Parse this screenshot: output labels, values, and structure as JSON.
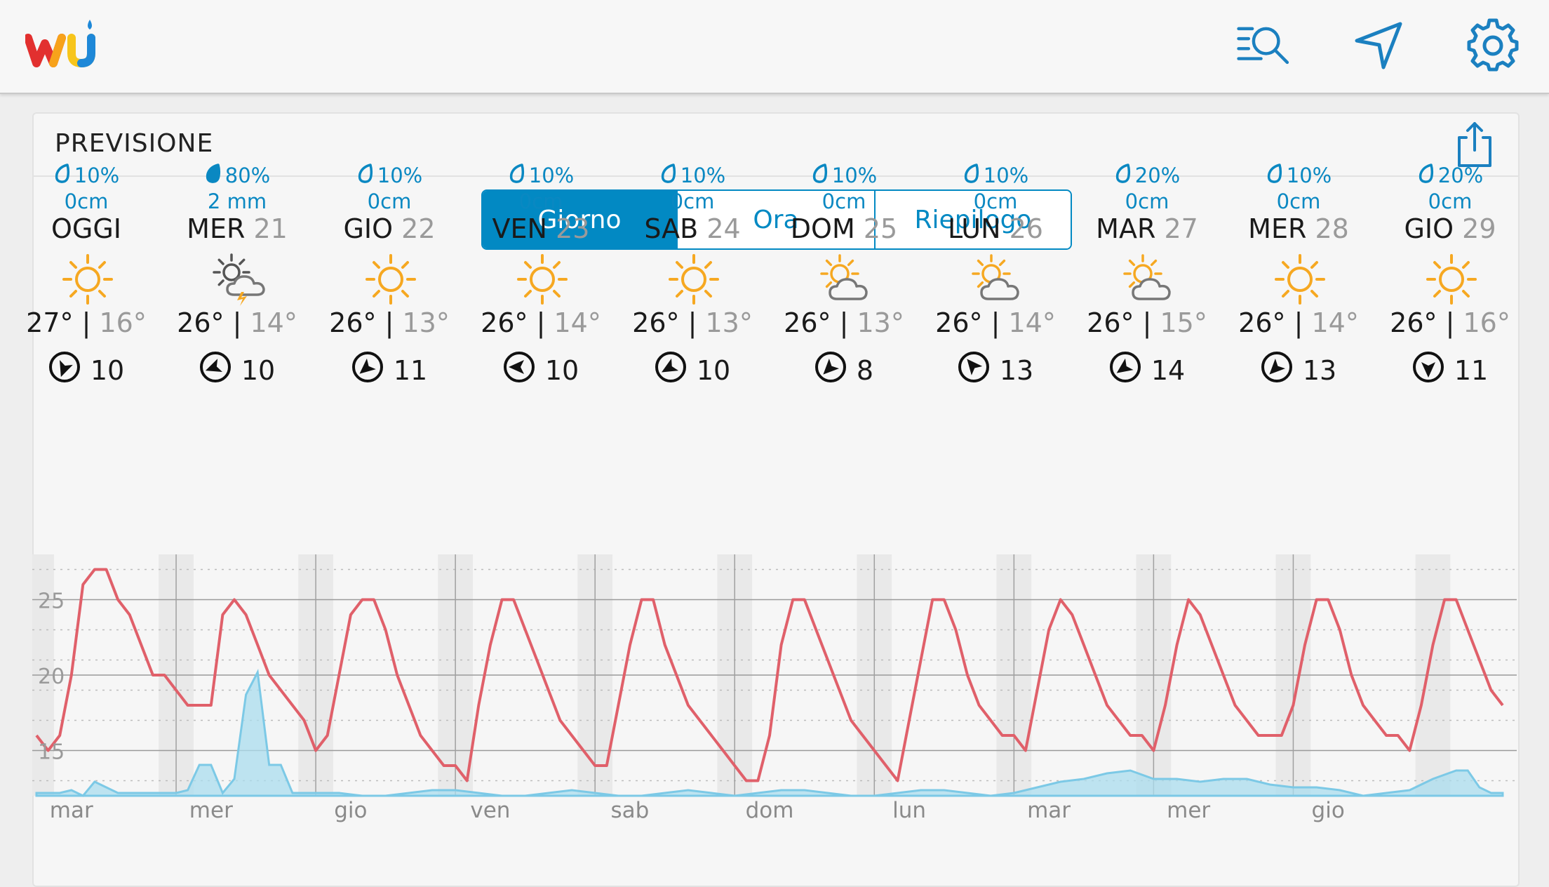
{
  "app": {
    "brand": "wu",
    "colors": {
      "accent": "#0289c3",
      "temp_line": "#e0606a",
      "precip_fill": "#a9dcee",
      "precip_line": "#7cc9e6"
    }
  },
  "toolbar": {
    "icons": [
      "search-list-icon",
      "location-arrow-icon",
      "gear-icon"
    ]
  },
  "forecast": {
    "title": "PREVISIONE",
    "tabs": [
      {
        "label": "Giorno",
        "active": true
      },
      {
        "label": "Ora",
        "active": false
      },
      {
        "label": "Riepilogo",
        "active": false
      }
    ],
    "days": [
      {
        "precip": "10%",
        "amount": "0cm",
        "day": "OGGI",
        "date": "",
        "icon": "sun-icon",
        "hi": "27°",
        "lo": "16°",
        "wind": "10",
        "drop_filled": false
      },
      {
        "precip": "80%",
        "amount": "2 mm",
        "day": "MER",
        "date": "21",
        "icon": "thunderstorm-icon",
        "hi": "26°",
        "lo": "14°",
        "wind": "10",
        "drop_filled": true
      },
      {
        "precip": "10%",
        "amount": "0cm",
        "day": "GIO",
        "date": "22",
        "icon": "sun-icon",
        "hi": "26°",
        "lo": "13°",
        "wind": "11",
        "drop_filled": false
      },
      {
        "precip": "10%",
        "amount": "0cm",
        "day": "VEN",
        "date": "23",
        "icon": "sun-icon",
        "hi": "26°",
        "lo": "14°",
        "wind": "10",
        "drop_filled": false
      },
      {
        "precip": "10%",
        "amount": "0cm",
        "day": "SAB",
        "date": "24",
        "icon": "sun-icon",
        "hi": "26°",
        "lo": "13°",
        "wind": "10",
        "drop_filled": false
      },
      {
        "precip": "10%",
        "amount": "0cm",
        "day": "DOM",
        "date": "25",
        "icon": "partly-cloudy-icon",
        "hi": "26°",
        "lo": "13°",
        "wind": "8",
        "drop_filled": false
      },
      {
        "precip": "10%",
        "amount": "0cm",
        "day": "LUN",
        "date": "26",
        "icon": "partly-cloudy-icon",
        "hi": "26°",
        "lo": "14°",
        "wind": "13",
        "drop_filled": false
      },
      {
        "precip": "20%",
        "amount": "0cm",
        "day": "MAR",
        "date": "27",
        "icon": "partly-cloudy-icon",
        "hi": "26°",
        "lo": "15°",
        "wind": "14",
        "drop_filled": false
      },
      {
        "precip": "10%",
        "amount": "0cm",
        "day": "MER",
        "date": "28",
        "icon": "sun-icon",
        "hi": "26°",
        "lo": "14°",
        "wind": "13",
        "drop_filled": false
      },
      {
        "precip": "20%",
        "amount": "0cm",
        "day": "GIO",
        "date": "29",
        "icon": "sun-icon",
        "hi": "26°",
        "lo": "16°",
        "wind": "11",
        "drop_filled": false
      }
    ]
  },
  "chart_data": {
    "type": "line",
    "title": "",
    "xlabel": "",
    "ylabel": "",
    "ylim": [
      12,
      28
    ],
    "yticks": [
      15,
      20,
      25
    ],
    "x_tick_labels": [
      "mar",
      "mer",
      "gio",
      "ven",
      "sab",
      "dom",
      "lun",
      "mar",
      "mer",
      "gio"
    ],
    "grid": true,
    "series": [
      {
        "kind": "temperature",
        "values": [
          [
            0,
            16
          ],
          [
            4,
            15
          ],
          [
            8,
            16
          ],
          [
            12,
            20
          ],
          [
            16,
            26
          ],
          [
            20,
            27
          ],
          [
            24,
            27
          ],
          [
            28,
            25
          ],
          [
            32,
            24
          ],
          [
            36,
            22
          ],
          [
            40,
            20
          ],
          [
            44,
            20
          ],
          [
            48,
            19
          ],
          [
            52,
            18
          ],
          [
            56,
            18
          ],
          [
            60,
            18
          ],
          [
            64,
            24
          ],
          [
            68,
            25
          ],
          [
            72,
            24
          ],
          [
            76,
            22
          ],
          [
            80,
            20
          ],
          [
            84,
            19
          ],
          [
            88,
            18
          ],
          [
            92,
            17
          ],
          [
            96,
            15
          ],
          [
            100,
            16
          ],
          [
            104,
            20
          ],
          [
            108,
            24
          ],
          [
            112,
            25
          ],
          [
            116,
            25
          ],
          [
            120,
            23
          ],
          [
            124,
            20
          ],
          [
            128,
            18
          ],
          [
            132,
            16
          ],
          [
            136,
            15
          ],
          [
            140,
            14
          ],
          [
            144,
            14
          ],
          [
            148,
            13
          ],
          [
            152,
            18
          ],
          [
            156,
            22
          ],
          [
            160,
            25
          ],
          [
            164,
            25
          ],
          [
            168,
            23
          ],
          [
            172,
            21
          ],
          [
            176,
            19
          ],
          [
            180,
            17
          ],
          [
            184,
            16
          ],
          [
            188,
            15
          ],
          [
            192,
            14
          ],
          [
            196,
            14
          ],
          [
            200,
            18
          ],
          [
            204,
            22
          ],
          [
            208,
            25
          ],
          [
            212,
            25
          ],
          [
            216,
            22
          ],
          [
            220,
            20
          ],
          [
            224,
            18
          ],
          [
            228,
            17
          ],
          [
            232,
            16
          ],
          [
            236,
            15
          ],
          [
            240,
            14
          ],
          [
            244,
            13
          ],
          [
            248,
            13
          ],
          [
            252,
            16
          ],
          [
            256,
            22
          ],
          [
            260,
            25
          ],
          [
            264,
            25
          ],
          [
            268,
            23
          ],
          [
            272,
            21
          ],
          [
            276,
            19
          ],
          [
            280,
            17
          ],
          [
            284,
            16
          ],
          [
            288,
            15
          ],
          [
            292,
            14
          ],
          [
            296,
            13
          ],
          [
            300,
            17
          ],
          [
            304,
            21
          ],
          [
            308,
            25
          ],
          [
            312,
            25
          ],
          [
            316,
            23
          ],
          [
            320,
            20
          ],
          [
            324,
            18
          ],
          [
            328,
            17
          ],
          [
            332,
            16
          ],
          [
            336,
            16
          ],
          [
            340,
            15
          ],
          [
            344,
            19
          ],
          [
            348,
            23
          ],
          [
            352,
            25
          ],
          [
            356,
            24
          ],
          [
            360,
            22
          ],
          [
            364,
            20
          ],
          [
            368,
            18
          ],
          [
            372,
            17
          ],
          [
            376,
            16
          ],
          [
            380,
            16
          ],
          [
            384,
            15
          ],
          [
            388,
            18
          ],
          [
            392,
            22
          ],
          [
            396,
            25
          ],
          [
            400,
            24
          ],
          [
            404,
            22
          ],
          [
            408,
            20
          ],
          [
            412,
            18
          ],
          [
            416,
            17
          ],
          [
            420,
            16
          ],
          [
            424,
            16
          ],
          [
            428,
            16
          ],
          [
            432,
            18
          ],
          [
            436,
            22
          ],
          [
            440,
            25
          ],
          [
            444,
            25
          ],
          [
            448,
            23
          ],
          [
            452,
            20
          ],
          [
            456,
            18
          ],
          [
            460,
            17
          ],
          [
            464,
            16
          ],
          [
            468,
            16
          ],
          [
            472,
            15
          ],
          [
            476,
            18
          ],
          [
            480,
            22
          ],
          [
            484,
            25
          ],
          [
            488,
            25
          ],
          [
            492,
            23
          ],
          [
            496,
            21
          ],
          [
            500,
            19
          ],
          [
            504,
            18
          ]
        ]
      },
      {
        "kind": "precipitation",
        "values": [
          [
            0,
            0.1
          ],
          [
            8,
            0.1
          ],
          [
            12,
            0.2
          ],
          [
            16,
            0.0
          ],
          [
            20,
            0.5
          ],
          [
            24,
            0.3
          ],
          [
            28,
            0.1
          ],
          [
            40,
            0.1
          ],
          [
            48,
            0.1
          ],
          [
            52,
            0.2
          ],
          [
            56,
            1.1
          ],
          [
            60,
            1.1
          ],
          [
            64,
            0.1
          ],
          [
            68,
            0.6
          ],
          [
            72,
            3.6
          ],
          [
            76,
            4.4
          ],
          [
            80,
            1.1
          ],
          [
            84,
            1.1
          ],
          [
            88,
            0.1
          ],
          [
            96,
            0.1
          ],
          [
            104,
            0.1
          ],
          [
            112,
            0.0
          ],
          [
            120,
            0.0
          ],
          [
            128,
            0.1
          ],
          [
            136,
            0.2
          ],
          [
            144,
            0.2
          ],
          [
            152,
            0.1
          ],
          [
            160,
            0.0
          ],
          [
            168,
            0.0
          ],
          [
            176,
            0.1
          ],
          [
            184,
            0.2
          ],
          [
            192,
            0.1
          ],
          [
            200,
            0.0
          ],
          [
            208,
            0.0
          ],
          [
            216,
            0.1
          ],
          [
            224,
            0.2
          ],
          [
            232,
            0.1
          ],
          [
            240,
            0.0
          ],
          [
            248,
            0.1
          ],
          [
            256,
            0.2
          ],
          [
            264,
            0.2
          ],
          [
            272,
            0.1
          ],
          [
            280,
            0.0
          ],
          [
            288,
            0.0
          ],
          [
            296,
            0.1
          ],
          [
            304,
            0.2
          ],
          [
            312,
            0.2
          ],
          [
            320,
            0.1
          ],
          [
            328,
            0.0
          ],
          [
            336,
            0.1
          ],
          [
            344,
            0.3
          ],
          [
            352,
            0.5
          ],
          [
            360,
            0.6
          ],
          [
            368,
            0.8
          ],
          [
            376,
            0.9
          ],
          [
            384,
            0.6
          ],
          [
            392,
            0.6
          ],
          [
            400,
            0.5
          ],
          [
            408,
            0.6
          ],
          [
            416,
            0.6
          ],
          [
            424,
            0.4
          ],
          [
            432,
            0.3
          ],
          [
            440,
            0.3
          ],
          [
            448,
            0.2
          ],
          [
            456,
            0.0
          ],
          [
            464,
            0.1
          ],
          [
            472,
            0.2
          ],
          [
            480,
            0.6
          ],
          [
            488,
            0.9
          ],
          [
            492,
            0.9
          ],
          [
            496,
            0.3
          ],
          [
            500,
            0.1
          ],
          [
            504,
            0.1
          ]
        ]
      }
    ]
  }
}
